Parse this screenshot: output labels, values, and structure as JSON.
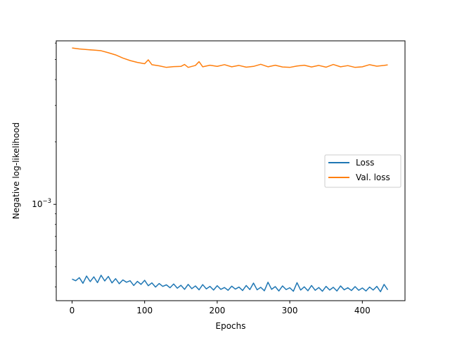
{
  "chart_data": {
    "type": "line",
    "title": "",
    "xlabel": "Epochs",
    "ylabel": "Negative log-likelihood",
    "xscale": "linear",
    "yscale": "log",
    "xlim": [
      -21.8,
      458.8
    ],
    "ylim": [
      0.000343,
      0.00615
    ],
    "xticks": [
      0,
      100,
      200,
      300,
      400
    ],
    "yticks": [
      {
        "value": 0.001,
        "base": "10",
        "exponent": "−3"
      }
    ],
    "grid": false,
    "legend": {
      "position": "center-right",
      "entries": [
        "Loss",
        "Val. loss"
      ]
    },
    "series": [
      {
        "name": "Loss",
        "color": "#1f77b4",
        "x": [
          0,
          5,
          10,
          15,
          20,
          25,
          30,
          35,
          40,
          45,
          50,
          55,
          60,
          65,
          70,
          75,
          80,
          85,
          90,
          95,
          100,
          105,
          110,
          115,
          120,
          125,
          130,
          135,
          140,
          145,
          150,
          155,
          160,
          165,
          170,
          175,
          180,
          185,
          190,
          195,
          200,
          205,
          210,
          215,
          220,
          225,
          230,
          235,
          240,
          245,
          250,
          255,
          260,
          265,
          270,
          275,
          280,
          285,
          290,
          295,
          300,
          305,
          310,
          315,
          320,
          325,
          330,
          335,
          340,
          345,
          350,
          355,
          360,
          365,
          370,
          375,
          380,
          385,
          390,
          395,
          400,
          405,
          410,
          415,
          420,
          425,
          430,
          435
        ],
        "values": [
          0.000436,
          0.000428,
          0.000443,
          0.000416,
          0.000451,
          0.000424,
          0.000447,
          0.000419,
          0.000455,
          0.000427,
          0.000449,
          0.000418,
          0.000438,
          0.000414,
          0.000432,
          0.000421,
          0.000428,
          0.000406,
          0.000425,
          0.000411,
          0.00043,
          0.000405,
          0.000418,
          0.000399,
          0.000415,
          0.000402,
          0.000409,
          0.000396,
          0.000413,
          0.000394,
          0.000407,
          0.000389,
          0.000411,
          0.000392,
          0.000404,
          0.000387,
          0.00041,
          0.000391,
          0.000402,
          0.000386,
          0.000405,
          0.000389,
          0.000397,
          0.000385,
          0.000403,
          0.00039,
          0.000399,
          0.000384,
          0.000406,
          0.000388,
          0.000417,
          0.000387,
          0.000398,
          0.000383,
          0.000421,
          0.000389,
          0.000401,
          0.000382,
          0.000404,
          0.000388,
          0.000396,
          0.000381,
          0.000419,
          0.000386,
          0.0004,
          0.000383,
          0.000406,
          0.000385,
          0.000397,
          0.000381,
          0.000402,
          0.000386,
          0.000398,
          0.000382,
          0.000404,
          0.000387,
          0.000396,
          0.000384,
          0.000401,
          0.000385,
          0.000395,
          0.000382,
          0.000399,
          0.000386,
          0.000402,
          0.000379,
          0.000411,
          0.000387
        ]
      },
      {
        "name": "Val. loss",
        "color": "#ff7f0e",
        "x": [
          0,
          10,
          20,
          30,
          40,
          50,
          60,
          70,
          80,
          90,
          100,
          105,
          110,
          120,
          130,
          140,
          150,
          155,
          160,
          170,
          175,
          180,
          190,
          200,
          210,
          220,
          230,
          240,
          250,
          260,
          270,
          280,
          290,
          300,
          310,
          320,
          330,
          340,
          350,
          360,
          370,
          380,
          390,
          400,
          410,
          420,
          430,
          435
        ],
        "values": [
          0.00568,
          0.00562,
          0.00558,
          0.00555,
          0.00551,
          0.00539,
          0.00526,
          0.00508,
          0.00494,
          0.00484,
          0.00477,
          0.00498,
          0.00472,
          0.00466,
          0.00458,
          0.00462,
          0.00463,
          0.00473,
          0.00458,
          0.00468,
          0.00488,
          0.00461,
          0.00469,
          0.00463,
          0.00472,
          0.00461,
          0.00468,
          0.00459,
          0.00463,
          0.00474,
          0.00461,
          0.00469,
          0.0046,
          0.00458,
          0.00465,
          0.00469,
          0.0046,
          0.00468,
          0.00459,
          0.00473,
          0.00461,
          0.00467,
          0.00458,
          0.00461,
          0.00472,
          0.00464,
          0.00468,
          0.00471
        ]
      }
    ]
  }
}
